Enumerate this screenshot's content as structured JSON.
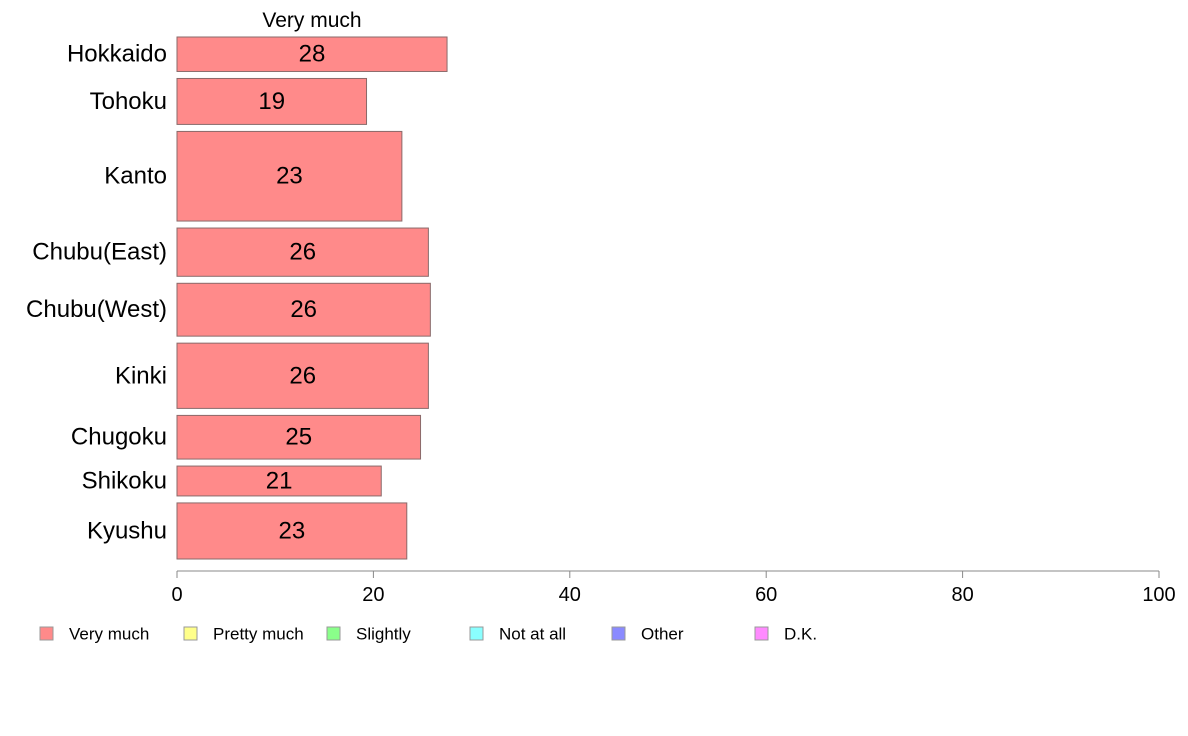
{
  "chart_data": {
    "type": "bar",
    "orientation": "horizontal",
    "panel_title": "Very much",
    "categories": [
      "Hokkaido",
      "Tohoku",
      "Kanto",
      "Chubu(East)",
      "Chubu(West)",
      "Kinki",
      "Chugoku",
      "Shikoku",
      "Kyushu"
    ],
    "series": [
      {
        "name": "Very much",
        "color": "#ff8a8a",
        "values": [
          27.5,
          19.3,
          22.9,
          25.6,
          25.8,
          25.6,
          24.8,
          20.8,
          23.4
        ],
        "labels": [
          "28",
          "19",
          "23",
          "26",
          "26",
          "26",
          "25",
          "21",
          "23"
        ]
      }
    ],
    "relative_group_sizes": [
      0.75,
      1.0,
      1.95,
      1.05,
      1.15,
      1.42,
      0.95,
      0.65,
      1.22
    ],
    "xlim": [
      0,
      100
    ],
    "xticks": [
      "0",
      "20",
      "40",
      "60",
      "80",
      "100"
    ],
    "xlabel": "",
    "ylabel": "",
    "grid": false,
    "legend": {
      "placement": "bottom",
      "items": [
        {
          "label": "Very much",
          "color": "#ff8a8a"
        },
        {
          "label": "Pretty much",
          "color": "#ffff8a"
        },
        {
          "label": "Slightly",
          "color": "#8aff8a"
        },
        {
          "label": "Not at all",
          "color": "#8affff"
        },
        {
          "label": "Other",
          "color": "#8a8aff"
        },
        {
          "label": "D.K.",
          "color": "#ff8aff"
        }
      ]
    }
  }
}
